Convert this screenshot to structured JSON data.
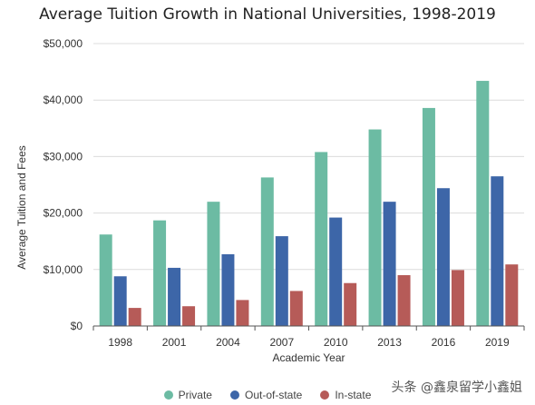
{
  "watermark": "头条 @鑫泉留学小鑫姐",
  "chart_data": {
    "type": "bar",
    "title": "Average Tuition Growth in National Universities, 1998-2019",
    "xlabel": "Academic Year",
    "ylabel": "Average Tuition and Fees",
    "categories": [
      "1998",
      "2001",
      "2004",
      "2007",
      "2010",
      "2013",
      "2016",
      "2019"
    ],
    "ylim": [
      0,
      50000
    ],
    "yticks": [
      0,
      10000,
      20000,
      30000,
      40000,
      50000
    ],
    "ytick_labels": [
      "$0",
      "$10,000",
      "$20,000",
      "$30,000",
      "$40,000",
      "$50,000"
    ],
    "grid": true,
    "legend_position": "bottom",
    "series": [
      {
        "name": "Private",
        "color": "#6cbba3",
        "values": [
          16200,
          18700,
          22000,
          26300,
          30800,
          34800,
          38600,
          43400
        ]
      },
      {
        "name": "Out-of-state",
        "color": "#3d66a8",
        "values": [
          8800,
          10300,
          12700,
          15900,
          19200,
          22000,
          24400,
          26500
        ]
      },
      {
        "name": "In-state",
        "color": "#b65b58",
        "values": [
          3200,
          3500,
          4600,
          6200,
          7600,
          9000,
          9900,
          10900
        ]
      }
    ]
  }
}
